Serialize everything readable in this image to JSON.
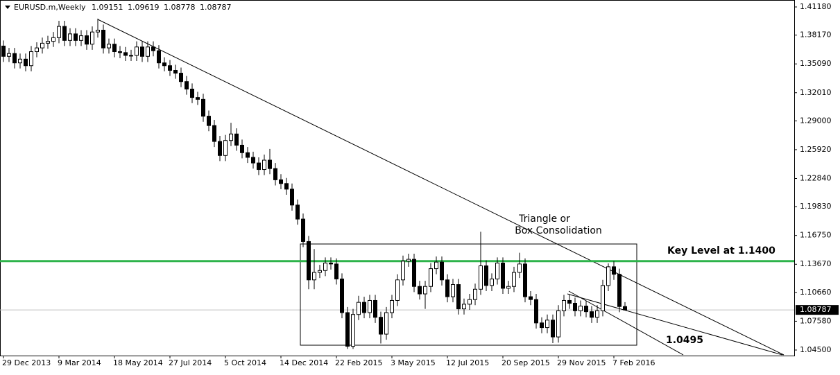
{
  "chart_data": {
    "type": "candlestick",
    "symbol": "EURUSD.m,Weekly",
    "categories": [
      "29 Dec 2013",
      null,
      null,
      null,
      null,
      null,
      null,
      null,
      null,
      null,
      "9 Mar 2014",
      null,
      null,
      null,
      null,
      null,
      null,
      null,
      null,
      null,
      "18 May 2014",
      null,
      null,
      null,
      null,
      null,
      null,
      null,
      null,
      null,
      "27 Jul 2014",
      null,
      null,
      null,
      null,
      null,
      null,
      null,
      null,
      null,
      "5 Oct 2014",
      null,
      null,
      null,
      null,
      null,
      null,
      null,
      null,
      null,
      "14 Dec 2014",
      null,
      null,
      null,
      null,
      null,
      null,
      null,
      null,
      null,
      "22 Feb 2015",
      null,
      null,
      null,
      null,
      null,
      null,
      null,
      null,
      null,
      "3 May 2015",
      null,
      null,
      null,
      null,
      null,
      null,
      null,
      null,
      null,
      "12 Jul 2015",
      null,
      null,
      null,
      null,
      null,
      null,
      null,
      null,
      null,
      "20 Sep 2015",
      null,
      null,
      null,
      null,
      null,
      null,
      null,
      null,
      null,
      "29 Nov 2015",
      null,
      null,
      null,
      null,
      null,
      null,
      null,
      null,
      null,
      "7 Feb 2016",
      null,
      null
    ],
    "open": [
      1.37,
      1.359,
      1.362,
      1.352,
      1.356,
      1.349,
      1.364,
      1.368,
      1.373,
      1.375,
      1.379,
      1.391,
      1.376,
      1.383,
      1.376,
      1.381,
      1.372,
      1.385,
      1.387,
      1.368,
      1.372,
      1.364,
      1.363,
      1.36,
      1.36,
      1.369,
      1.359,
      1.369,
      1.365,
      1.352,
      1.349,
      1.344,
      1.341,
      1.332,
      1.324,
      1.315,
      1.313,
      1.295,
      1.285,
      1.268,
      1.253,
      1.269,
      1.276,
      1.264,
      1.256,
      1.251,
      1.245,
      1.238,
      1.248,
      1.239,
      1.227,
      1.223,
      1.217,
      1.2,
      1.185,
      1.161,
      1.12,
      1.128,
      1.13,
      1.138,
      1.137,
      1.121,
      1.085,
      1.049,
      1.083,
      1.096,
      1.085,
      1.098,
      1.08,
      1.062,
      1.085,
      1.098,
      1.12,
      1.14,
      1.142,
      1.113,
      1.105,
      1.113,
      1.132,
      1.139,
      1.12,
      1.102,
      1.115,
      1.089,
      1.094,
      1.099,
      1.11,
      1.135,
      1.114,
      1.121,
      1.138,
      1.111,
      1.113,
      1.128,
      1.137,
      1.102,
      1.099,
      1.074,
      1.069,
      1.077,
      1.059,
      1.087,
      1.098,
      1.095,
      1.087,
      1.092,
      1.086,
      1.08,
      1.087,
      1.114,
      1.134,
      1.126,
      1.09151
    ],
    "high": [
      1.376,
      1.368,
      1.368,
      1.362,
      1.362,
      1.37,
      1.374,
      1.379,
      1.381,
      1.385,
      1.397,
      1.397,
      1.389,
      1.389,
      1.387,
      1.387,
      1.391,
      1.3993,
      1.393,
      1.378,
      1.378,
      1.37,
      1.369,
      1.366,
      1.375,
      1.375,
      1.375,
      1.375,
      1.371,
      1.358,
      1.355,
      1.35,
      1.347,
      1.338,
      1.33,
      1.321,
      1.319,
      1.301,
      1.291,
      1.274,
      1.275,
      1.288,
      1.282,
      1.27,
      1.262,
      1.257,
      1.251,
      1.254,
      1.26,
      1.245,
      1.233,
      1.229,
      1.223,
      1.206,
      1.191,
      1.167,
      1.153,
      1.136,
      1.144,
      1.144,
      1.143,
      1.127,
      1.091,
      1.089,
      1.103,
      1.102,
      1.104,
      1.104,
      1.086,
      1.091,
      1.104,
      1.126,
      1.146,
      1.148,
      1.148,
      1.119,
      1.119,
      1.138,
      1.145,
      1.145,
      1.126,
      1.121,
      1.121,
      1.1,
      1.105,
      1.116,
      1.1714,
      1.141,
      1.127,
      1.144,
      1.144,
      1.119,
      1.134,
      1.149,
      1.143,
      1.108,
      1.105,
      1.08,
      1.083,
      1.083,
      1.093,
      1.104,
      1.104,
      1.101,
      1.098,
      1.098,
      1.092,
      1.093,
      1.12,
      1.1376,
      1.14,
      1.132,
      1.09619
    ],
    "low": [
      1.353,
      1.353,
      1.346,
      1.346,
      1.343,
      1.343,
      1.358,
      1.362,
      1.367,
      1.369,
      1.373,
      1.37,
      1.37,
      1.37,
      1.37,
      1.366,
      1.366,
      1.379,
      1.362,
      1.362,
      1.358,
      1.357,
      1.354,
      1.354,
      1.354,
      1.353,
      1.353,
      1.359,
      1.346,
      1.343,
      1.338,
      1.335,
      1.326,
      1.318,
      1.309,
      1.307,
      1.289,
      1.279,
      1.262,
      1.247,
      1.247,
      1.263,
      1.258,
      1.25,
      1.245,
      1.239,
      1.232,
      1.232,
      1.233,
      1.221,
      1.217,
      1.211,
      1.194,
      1.179,
      1.155,
      1.11,
      1.11,
      1.122,
      1.124,
      1.131,
      1.115,
      1.079,
      1.0462,
      1.0462,
      1.077,
      1.079,
      1.079,
      1.074,
      1.052,
      1.056,
      1.079,
      1.092,
      1.114,
      1.134,
      1.107,
      1.099,
      1.089,
      1.107,
      1.126,
      1.114,
      1.096,
      1.096,
      1.083,
      1.083,
      1.088,
      1.093,
      1.104,
      1.108,
      1.108,
      1.115,
      1.105,
      1.105,
      1.107,
      1.122,
      1.096,
      1.093,
      1.068,
      1.063,
      1.063,
      1.0524,
      1.053,
      1.081,
      1.089,
      1.081,
      1.081,
      1.08,
      1.074,
      1.074,
      1.081,
      1.108,
      1.12,
      1.0855,
      1.08778
    ],
    "close": [
      1.359,
      1.362,
      1.352,
      1.356,
      1.349,
      1.364,
      1.368,
      1.373,
      1.375,
      1.379,
      1.391,
      1.376,
      1.383,
      1.376,
      1.381,
      1.372,
      1.385,
      1.387,
      1.368,
      1.372,
      1.364,
      1.363,
      1.36,
      1.36,
      1.369,
      1.359,
      1.369,
      1.365,
      1.352,
      1.349,
      1.344,
      1.341,
      1.332,
      1.324,
      1.315,
      1.313,
      1.295,
      1.285,
      1.268,
      1.253,
      1.269,
      1.276,
      1.264,
      1.256,
      1.251,
      1.245,
      1.238,
      1.248,
      1.239,
      1.227,
      1.223,
      1.217,
      1.2,
      1.185,
      1.161,
      1.12,
      1.128,
      1.13,
      1.138,
      1.137,
      1.121,
      1.085,
      1.049,
      1.083,
      1.096,
      1.085,
      1.098,
      1.08,
      1.062,
      1.085,
      1.098,
      1.12,
      1.14,
      1.142,
      1.113,
      1.105,
      1.113,
      1.132,
      1.139,
      1.12,
      1.102,
      1.115,
      1.089,
      1.094,
      1.099,
      1.11,
      1.135,
      1.114,
      1.121,
      1.138,
      1.111,
      1.113,
      1.128,
      1.137,
      1.102,
      1.099,
      1.074,
      1.069,
      1.077,
      1.059,
      1.087,
      1.098,
      1.095,
      1.087,
      1.092,
      1.086,
      1.08,
      1.087,
      1.114,
      1.134,
      1.126,
      1.0915,
      1.08787
    ],
    "ylim": [
      1.0398,
      1.417
    ],
    "yticks": [
      {
        "value": 1.4118,
        "label": "1.41180"
      },
      {
        "value": 1.3817,
        "label": "1.38170"
      },
      {
        "value": 1.3509,
        "label": "1.35090"
      },
      {
        "value": 1.3201,
        "label": "1.32010"
      },
      {
        "value": 1.29,
        "label": "1.29000"
      },
      {
        "value": 1.2592,
        "label": "1.25920"
      },
      {
        "value": 1.2284,
        "label": "1.22840"
      },
      {
        "value": 1.1983,
        "label": "1.19830"
      },
      {
        "value": 1.1675,
        "label": "1.16750"
      },
      {
        "value": 1.1367,
        "label": "1.13670"
      },
      {
        "value": 1.1066,
        "label": "1.10660"
      },
      {
        "value": 1.0758,
        "label": "1.07580"
      },
      {
        "value": 1.045,
        "label": "1.04500"
      }
    ],
    "key_level": 1.14,
    "key_level_color": "#2db34a",
    "up_color": "#ffffff",
    "down_color": "#000000",
    "annotations": {
      "box_title_1": "Triangle or",
      "box_title_2": "Box Consolidation",
      "key_level_label": "Key Level at 1.1400",
      "target_label": "1.0495"
    }
  }
}
